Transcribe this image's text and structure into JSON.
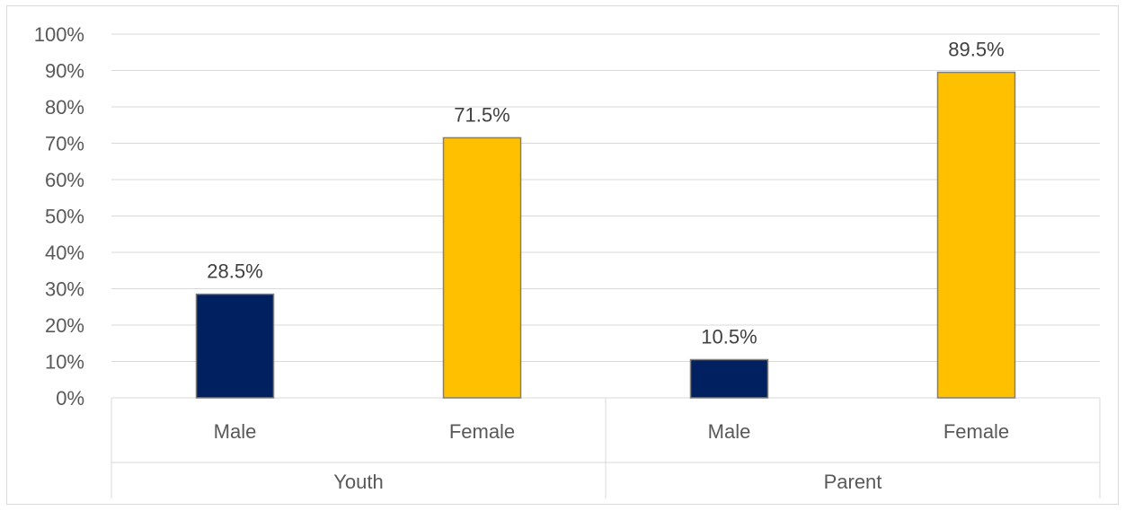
{
  "chart_data": {
    "type": "bar",
    "y_axis": {
      "ylim": [
        0,
        100
      ],
      "tick_step": 10,
      "tick_labels": [
        "0%",
        "10%",
        "20%",
        "30%",
        "40%",
        "50%",
        "60%",
        "70%",
        "80%",
        "90%",
        "100%"
      ],
      "grid": true
    },
    "groups": [
      {
        "label": "Youth",
        "bars": [
          {
            "category": "Male",
            "value": 28.5,
            "label": "28.5%",
            "color": "#002060"
          },
          {
            "category": "Female",
            "value": 71.5,
            "label": "71.5%",
            "color": "#FFC000"
          }
        ]
      },
      {
        "label": "Parent",
        "bars": [
          {
            "category": "Male",
            "value": 10.5,
            "label": "10.5%",
            "color": "#002060"
          },
          {
            "category": "Female",
            "value": 89.5,
            "label": "89.5%",
            "color": "#FFC000"
          }
        ]
      }
    ],
    "legend": "none"
  }
}
